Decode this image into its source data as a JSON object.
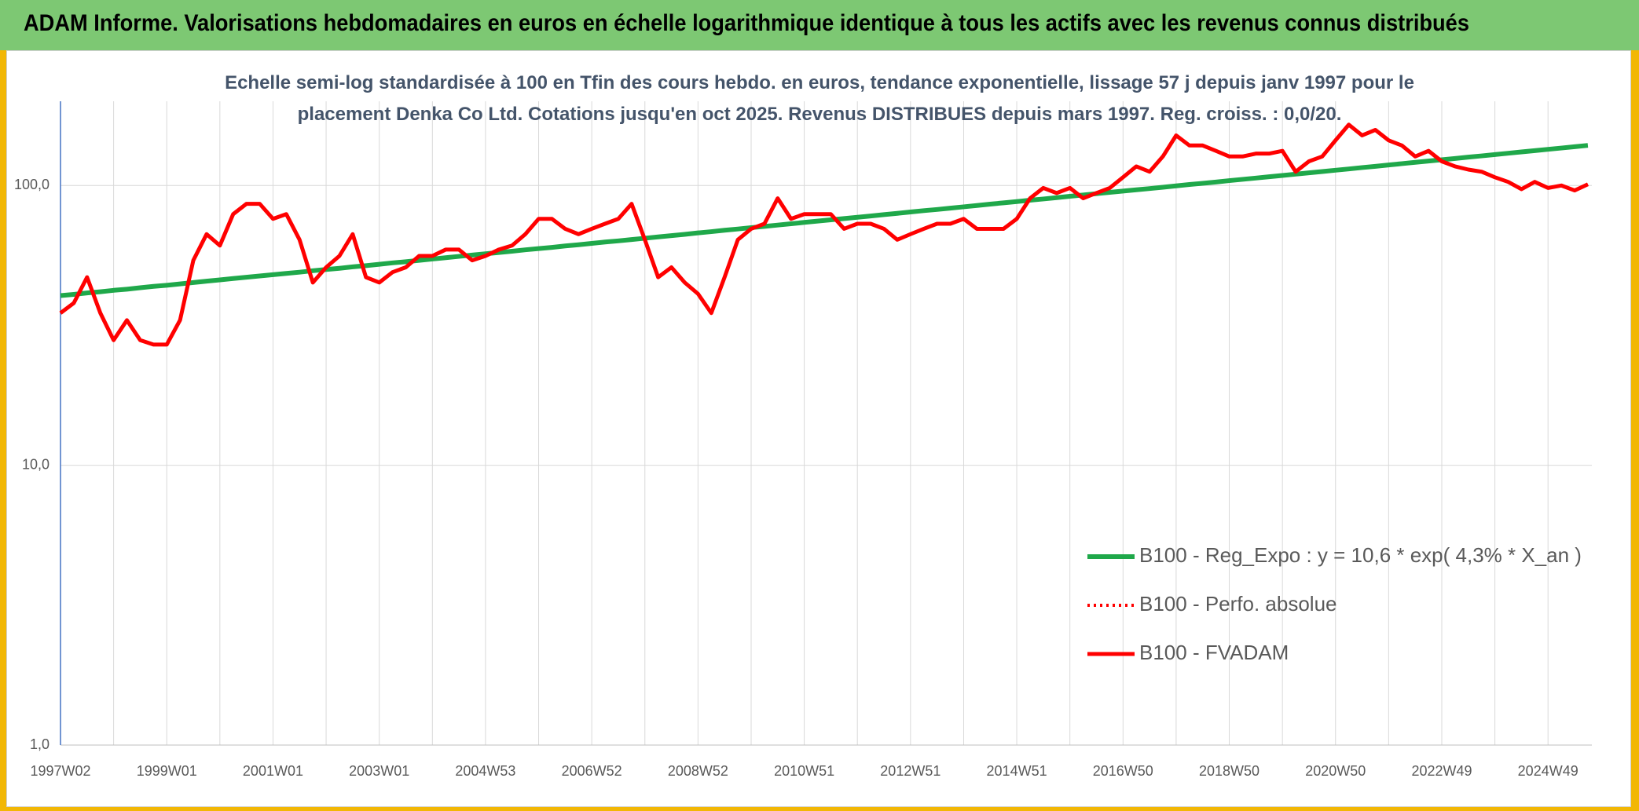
{
  "header": {
    "title": "ADAM Informe. Valorisations hebdomadaires en euros en échelle logarithmique identique à tous les actifs avec les revenus connus distribués"
  },
  "chart_data": {
    "type": "line",
    "title": "Echelle semi-log standardisée à 100 en Tfin des cours hebdo. en euros, tendance exponentielle, lissage 57 j depuis janv 1997 pour le placement Denka Co Ltd. Cotations jusqu'en oct 2025. Revenus DISTRIBUES depuis mars 1997. Reg. croiss. : 0,0/20.",
    "log_scale": true,
    "grid": true,
    "legend_position": "lower right",
    "ylim": [
      1,
      200
    ],
    "yticks": [
      {
        "value": 1,
        "label": "1,0"
      },
      {
        "value": 10,
        "label": "10,0"
      },
      {
        "value": 100,
        "label": "100,0"
      }
    ],
    "categories": [
      "1997W02",
      null,
      null,
      null,
      null,
      null,
      null,
      null,
      "1999W01",
      null,
      null,
      null,
      null,
      null,
      null,
      null,
      "2001W01",
      null,
      null,
      null,
      null,
      null,
      null,
      null,
      "2003W01",
      null,
      null,
      null,
      null,
      null,
      null,
      null,
      "2004W53",
      null,
      null,
      null,
      null,
      null,
      null,
      null,
      "2006W52",
      null,
      null,
      null,
      null,
      null,
      null,
      null,
      "2008W52",
      null,
      null,
      null,
      null,
      null,
      null,
      null,
      "2010W51",
      null,
      null,
      null,
      null,
      null,
      null,
      null,
      "2012W51",
      null,
      null,
      null,
      null,
      null,
      null,
      null,
      "2014W51",
      null,
      null,
      null,
      null,
      null,
      null,
      null,
      "2016W50",
      null,
      null,
      null,
      null,
      null,
      null,
      null,
      "2018W50",
      null,
      null,
      null,
      null,
      null,
      null,
      null,
      "2020W50",
      null,
      null,
      null,
      null,
      null,
      null,
      null,
      "2022W49",
      null,
      null,
      null,
      null,
      null,
      null,
      null,
      "2024W49",
      null,
      null,
      null
    ],
    "series": [
      {
        "name": "B100 - Reg_Expo : y = 10,6 * exp( 4,3% *  X_an )",
        "color": "#1fa84a",
        "style": "solid",
        "width": 6,
        "values": [
          40.4,
          40.8,
          41.3,
          41.7,
          42.2,
          42.6,
          43.1,
          43.6,
          44.0,
          44.5,
          45.0,
          45.5,
          46.0,
          46.5,
          47.0,
          47.5,
          48.0,
          48.5,
          49.0,
          49.6,
          50.1,
          50.6,
          51.2,
          51.7,
          52.3,
          52.9,
          53.4,
          54.0,
          54.6,
          55.2,
          55.8,
          56.4,
          57.0,
          57.6,
          58.2,
          58.9,
          59.5,
          60.1,
          60.8,
          61.4,
          62.1,
          62.8,
          63.4,
          64.1,
          64.8,
          65.5,
          66.2,
          66.9,
          67.7,
          68.4,
          69.2,
          69.9,
          70.7,
          71.4,
          72.2,
          73.0,
          73.8,
          74.6,
          75.4,
          76.2,
          77.0,
          77.8,
          78.7,
          79.5,
          80.4,
          81.3,
          82.1,
          83.0,
          83.9,
          84.8,
          85.8,
          86.7,
          87.6,
          88.6,
          89.5,
          90.5,
          91.5,
          92.5,
          93.5,
          94.5,
          95.5,
          96.5,
          97.5,
          98.6,
          99.7,
          100.8,
          101.8,
          102.9,
          104.1,
          105.2,
          106.3,
          107.5,
          108.6,
          109.8,
          111.0,
          112.2,
          113.4,
          114.6,
          115.9,
          117.1,
          118.4,
          119.7,
          121.0,
          122.3,
          123.6,
          124.9,
          126.3,
          127.6,
          129.0,
          130.4,
          131.8,
          133.2,
          134.7,
          136.1,
          137.6,
          139.1
        ]
      },
      {
        "name": "B100 - Perfo. absolue",
        "color": "#ff0000",
        "style": "dotted",
        "width": 4,
        "values": [
          35,
          38,
          47,
          35,
          28,
          33,
          28,
          27,
          27,
          33,
          54,
          67,
          61,
          79,
          86,
          86,
          76,
          79,
          64,
          45,
          51,
          56,
          67,
          47,
          45,
          49,
          51,
          56,
          56,
          59,
          59,
          54,
          56,
          59,
          61,
          67,
          76,
          76,
          70,
          67,
          70,
          73,
          76,
          86,
          64,
          47,
          51,
          45,
          41,
          35,
          47,
          64,
          70,
          73,
          90,
          76,
          79,
          79,
          79,
          70,
          73,
          73,
          70,
          64,
          67,
          70,
          73,
          73,
          76,
          70,
          70,
          70,
          76,
          90,
          98,
          94,
          98,
          90,
          94,
          98,
          107,
          117,
          112,
          127,
          151,
          139,
          139,
          133,
          127,
          127,
          130,
          130,
          133,
          112,
          122,
          127,
          145,
          165,
          151,
          158,
          145,
          139,
          127,
          133,
          122,
          117,
          114,
          112,
          107,
          103,
          97,
          103,
          98,
          100,
          96,
          101
        ]
      },
      {
        "name": "B100 - FVADAM",
        "color": "#ff0000",
        "style": "solid",
        "width": 5,
        "values": [
          35,
          38,
          47,
          35,
          28,
          33,
          28,
          27,
          27,
          33,
          54,
          67,
          61,
          79,
          86,
          86,
          76,
          79,
          64,
          45,
          51,
          56,
          67,
          47,
          45,
          49,
          51,
          56,
          56,
          59,
          59,
          54,
          56,
          59,
          61,
          67,
          76,
          76,
          70,
          67,
          70,
          73,
          76,
          86,
          64,
          47,
          51,
          45,
          41,
          35,
          47,
          64,
          70,
          73,
          90,
          76,
          79,
          79,
          79,
          70,
          73,
          73,
          70,
          64,
          67,
          70,
          73,
          73,
          76,
          70,
          70,
          70,
          76,
          90,
          98,
          94,
          98,
          90,
          94,
          98,
          107,
          117,
          112,
          127,
          151,
          139,
          139,
          133,
          127,
          127,
          130,
          130,
          133,
          112,
          122,
          127,
          145,
          165,
          151,
          158,
          145,
          139,
          127,
          133,
          122,
          117,
          114,
          112,
          107,
          103,
          97,
          103,
          98,
          100,
          96,
          101
        ]
      }
    ]
  }
}
